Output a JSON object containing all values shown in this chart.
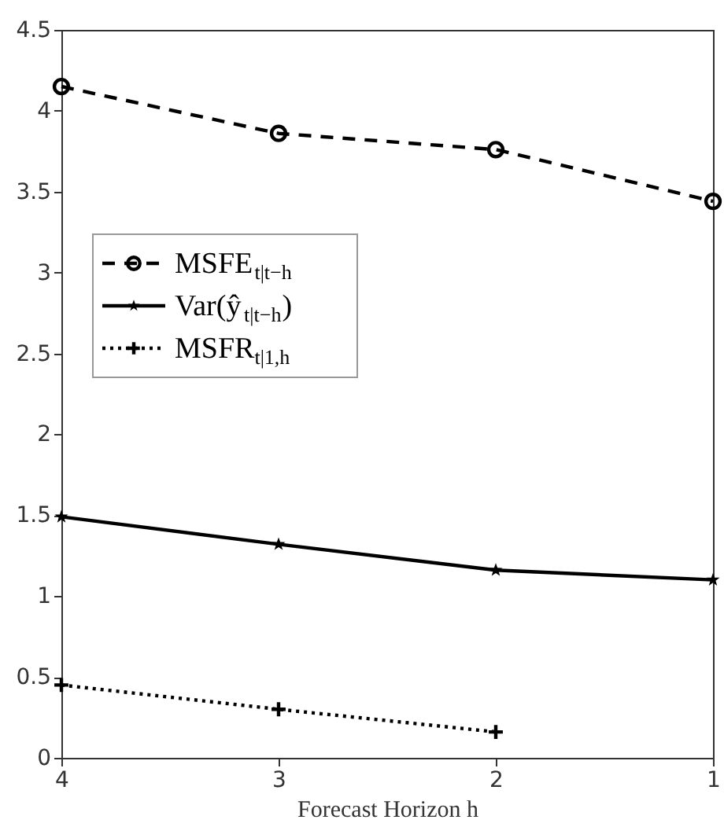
{
  "chart_data": {
    "type": "line",
    "xlabel": "Forecast Horizon h",
    "x": [
      4,
      3,
      2,
      1
    ],
    "series": [
      {
        "name": "MSFE$_{t|t−h}$",
        "color": "#000000",
        "values": [
          4.15,
          3.86,
          3.76,
          3.44
        ],
        "marker": "circle",
        "line_style": "dashed"
      },
      {
        "name": "Var(ŷ$_{t|t−h}$)",
        "color": "#000000",
        "values": [
          1.49,
          1.32,
          1.16,
          1.1
        ],
        "marker": "star",
        "line_style": "solid"
      },
      {
        "name": "MSFR$_{t|1,h}$",
        "color": "#000000",
        "values": [
          0.45,
          0.3,
          0.16,
          null
        ],
        "marker": "cross",
        "line_style": "dotted"
      }
    ],
    "xlim": [
      4,
      1
    ],
    "xticks": [
      4,
      3,
      2,
      1
    ],
    "ylim": [
      0,
      4.5
    ],
    "yticks": [
      0,
      0.5,
      1,
      1.5,
      2,
      2.5,
      3,
      3.5,
      4,
      4.5
    ],
    "grid": false,
    "legend": "left"
  }
}
